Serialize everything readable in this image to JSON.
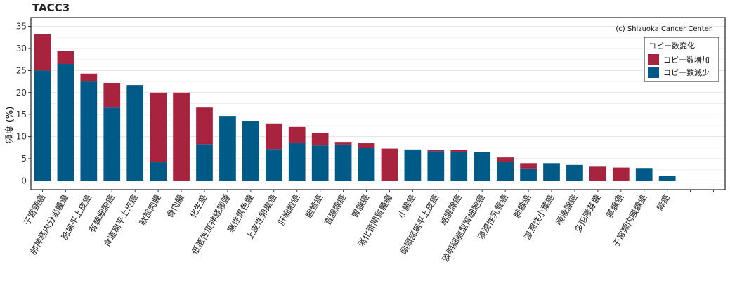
{
  "chart_data": {
    "type": "bar",
    "stacked": true,
    "title": "TACC3",
    "ylabel": "頻度 (%)",
    "xlabel": "",
    "ylim": [
      -2,
      37
    ],
    "yticks": [
      0,
      5,
      10,
      15,
      20,
      25,
      30,
      35
    ],
    "grid": true,
    "legend_position": "top-right",
    "legend_title": "コピー数変化",
    "credit": "(c) Shizuoka Cancer Center",
    "categories": [
      "子宮頸癌",
      "肺神経内分泌腫瘍",
      "肺扁平上皮癌",
      "有棘細胞癌",
      "食道扁平上皮癌",
      "軟部肉腫",
      "骨肉腫",
      "化生癌",
      "低悪性度神経膠腫",
      "悪性黒色腫",
      "上皮性卵巣癌",
      "肝細胞癌",
      "胆管癌",
      "直腸腺癌",
      "胃腺癌",
      "消化管間質腫瘍",
      "小腸癌",
      "頭頸部扁平上皮癌",
      "結腸腺癌",
      "淡明細胞型腎細胞癌",
      "浸潤性乳管癌",
      "肺腺癌",
      "浸潤性小葉癌",
      "唾液腺癌",
      "多形膠芽腫",
      "膵腺癌",
      "子宮類内膜腺癌",
      "膵癌",
      "",
      ""
    ],
    "series": [
      {
        "name": "コピー数減少",
        "color": "#005a87",
        "values": [
          25.0,
          26.5,
          22.5,
          16.6,
          21.7,
          4.2,
          0,
          8.3,
          14.7,
          13.6,
          7.2,
          8.6,
          8.0,
          8.2,
          7.5,
          0,
          7.1,
          6.7,
          6.6,
          6.5,
          4.3,
          2.8,
          4.0,
          3.6,
          0,
          0,
          2.9,
          1.1,
          0,
          0
        ]
      },
      {
        "name": "コピー数増加",
        "color": "#a8233e",
        "values": [
          8.3,
          2.9,
          1.8,
          5.6,
          0,
          15.8,
          20.0,
          8.3,
          0,
          0,
          5.8,
          3.6,
          2.8,
          0.6,
          1.0,
          7.3,
          0,
          0.3,
          0.4,
          0,
          1.0,
          1.2,
          0,
          0,
          3.2,
          3.0,
          0,
          0,
          0,
          0
        ]
      }
    ]
  }
}
